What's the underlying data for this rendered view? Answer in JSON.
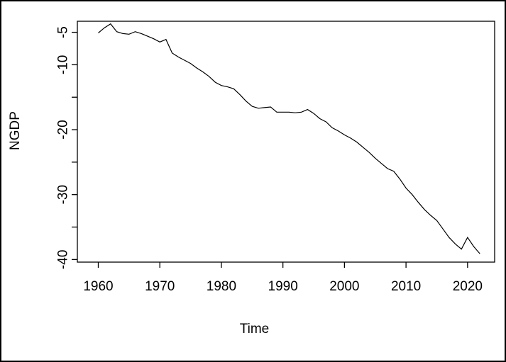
{
  "window": {
    "background": "#ffffff",
    "border_color": "#000000"
  },
  "chart_data": {
    "type": "line",
    "title": "",
    "xlabel": "Time",
    "ylabel": "NGDP",
    "line_color": "#000000",
    "xlim": [
      1956.6,
      2024.4
    ],
    "ylim": [
      -40.4,
      -3.3
    ],
    "x_ticks": [
      1960,
      1970,
      1980,
      1990,
      2000,
      2010,
      2020
    ],
    "y_ticks_all": [
      -5,
      -10,
      -15,
      -20,
      -25,
      -30,
      -35,
      -40
    ],
    "y_ticks_labeled": [
      -5,
      -10,
      -20,
      -30,
      -40
    ],
    "grid": "off",
    "legend": "none",
    "series": [
      {
        "name": "NGDP",
        "x": [
          1960,
          1961,
          1962,
          1963,
          1964,
          1965,
          1966,
          1967,
          1968,
          1969,
          1970,
          1971,
          1972,
          1973,
          1974,
          1975,
          1976,
          1977,
          1978,
          1979,
          1980,
          1981,
          1982,
          1983,
          1984,
          1985,
          1986,
          1987,
          1988,
          1989,
          1990,
          1991,
          1992,
          1993,
          1994,
          1995,
          1996,
          1997,
          1998,
          1999,
          2000,
          2001,
          2002,
          2003,
          2004,
          2005,
          2006,
          2007,
          2008,
          2009,
          2010,
          2011,
          2012,
          2013,
          2014,
          2015,
          2016,
          2017,
          2018,
          2019,
          2020,
          2021,
          2022
        ],
        "y": [
          -5.1,
          -4.3,
          -3.7,
          -4.9,
          -5.2,
          -5.3,
          -4.9,
          -5.2,
          -5.6,
          -6.0,
          -6.5,
          -6.1,
          -8.2,
          -8.8,
          -9.3,
          -9.8,
          -10.5,
          -11.1,
          -11.8,
          -12.7,
          -13.2,
          -13.4,
          -13.7,
          -14.6,
          -15.6,
          -16.4,
          -16.7,
          -16.6,
          -16.5,
          -17.3,
          -17.3,
          -17.3,
          -17.4,
          -17.3,
          -16.9,
          -17.5,
          -18.3,
          -18.8,
          -19.7,
          -20.2,
          -20.8,
          -21.3,
          -21.9,
          -22.7,
          -23.5,
          -24.4,
          -25.2,
          -26.0,
          -26.4,
          -27.6,
          -29.0,
          -30.0,
          -31.2,
          -32.3,
          -33.2,
          -34.0,
          -35.3,
          -36.6,
          -37.6,
          -38.4,
          -36.6,
          -38.0,
          -39.1
        ]
      }
    ]
  }
}
